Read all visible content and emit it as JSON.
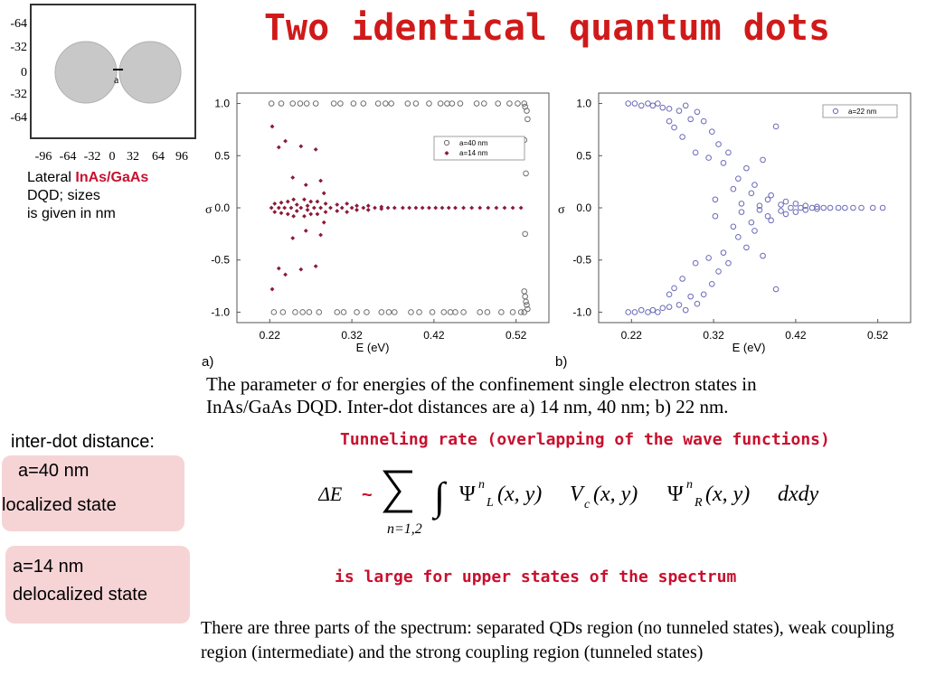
{
  "title": "Two identical quantum dots",
  "inset": {
    "y_ticks": [
      "-64",
      "-32",
      "0",
      "-32",
      "-64"
    ],
    "x_ticks": [
      "-96",
      "-64",
      "-32",
      "0",
      "32",
      "64",
      "96"
    ],
    "gap_label": "a",
    "caption_prefix": "Lateral ",
    "caption_highlight": "InAs/GaAs",
    "caption_line2": "DQD; sizes",
    "caption_line3": "is given in nm"
  },
  "chart_data": [
    {
      "type": "scatter",
      "panel_label": "a)",
      "xlabel": "E (eV)",
      "ylabel": "σ",
      "xlim": [
        0.18,
        0.56
      ],
      "ylim": [
        -1.1,
        1.1
      ],
      "x_ticks": [
        "0.22",
        "0.32",
        "0.42",
        "0.52"
      ],
      "y_ticks": [
        "1.0",
        "0.5",
        "0.0",
        "-0.5",
        "-1.0"
      ],
      "legend_position": "top-right",
      "grid": false,
      "series": [
        {
          "name": "a=40 nm",
          "marker": "open-circle",
          "color": "#6e6e6e",
          "points": [
            [
              0.222,
              1.0
            ],
            [
              0.225,
              -1.0
            ],
            [
              0.234,
              1.0
            ],
            [
              0.236,
              -1.0
            ],
            [
              0.248,
              1.0
            ],
            [
              0.251,
              -1.0
            ],
            [
              0.257,
              1.0
            ],
            [
              0.26,
              -1.0
            ],
            [
              0.265,
              1.0
            ],
            [
              0.268,
              -1.0
            ],
            [
              0.276,
              1.0
            ],
            [
              0.28,
              -1.0
            ],
            [
              0.298,
              1.0
            ],
            [
              0.302,
              -1.0
            ],
            [
              0.306,
              1.0
            ],
            [
              0.31,
              -1.0
            ],
            [
              0.322,
              1.0
            ],
            [
              0.326,
              -1.0
            ],
            [
              0.334,
              1.0
            ],
            [
              0.338,
              -1.0
            ],
            [
              0.352,
              1.0
            ],
            [
              0.356,
              -1.0
            ],
            [
              0.361,
              1.0
            ],
            [
              0.365,
              -1.0
            ],
            [
              0.368,
              1.0
            ],
            [
              0.372,
              -1.0
            ],
            [
              0.388,
              1.0
            ],
            [
              0.392,
              -1.0
            ],
            [
              0.398,
              1.0
            ],
            [
              0.402,
              -1.0
            ],
            [
              0.414,
              1.0
            ],
            [
              0.418,
              -1.0
            ],
            [
              0.428,
              1.0
            ],
            [
              0.432,
              -1.0
            ],
            [
              0.436,
              1.0
            ],
            [
              0.44,
              -1.0
            ],
            [
              0.442,
              1.0
            ],
            [
              0.446,
              -1.0
            ],
            [
              0.452,
              1.0
            ],
            [
              0.456,
              -1.0
            ],
            [
              0.472,
              1.0
            ],
            [
              0.476,
              -1.0
            ],
            [
              0.481,
              1.0
            ],
            [
              0.485,
              -1.0
            ],
            [
              0.498,
              1.0
            ],
            [
              0.502,
              -1.0
            ],
            [
              0.512,
              1.0
            ],
            [
              0.516,
              -1.0
            ],
            [
              0.522,
              1.0
            ],
            [
              0.526,
              -1.0
            ],
            [
              0.53,
              1.0
            ],
            [
              0.531,
              0.97
            ],
            [
              0.533,
              0.93
            ],
            [
              0.534,
              0.85
            ],
            [
              0.53,
              0.65
            ],
            [
              0.532,
              0.33
            ],
            [
              0.531,
              -0.25
            ],
            [
              0.53,
              -0.8
            ],
            [
              0.531,
              -0.85
            ],
            [
              0.532,
              -0.9
            ],
            [
              0.533,
              -0.93
            ],
            [
              0.534,
              -0.97
            ],
            [
              0.53,
              -1.0
            ]
          ]
        },
        {
          "name": "a=14 nm",
          "marker": "filled-diamond",
          "color": "#8b1a3a",
          "points": [
            [
              0.223,
              0.78
            ],
            [
              0.223,
              -0.78
            ],
            [
              0.231,
              0.58
            ],
            [
              0.231,
              -0.58
            ],
            [
              0.239,
              0.64
            ],
            [
              0.239,
              -0.64
            ],
            [
              0.248,
              0.29
            ],
            [
              0.248,
              -0.29
            ],
            [
              0.258,
              0.59
            ],
            [
              0.258,
              -0.59
            ],
            [
              0.264,
              0.22
            ],
            [
              0.264,
              -0.22
            ],
            [
              0.276,
              0.56
            ],
            [
              0.276,
              -0.56
            ],
            [
              0.282,
              0.26
            ],
            [
              0.282,
              -0.26
            ],
            [
              0.286,
              0.14
            ],
            [
              0.286,
              -0.14
            ],
            [
              0.222,
              0.0
            ],
            [
              0.226,
              0.04
            ],
            [
              0.226,
              -0.04
            ],
            [
              0.231,
              0.0
            ],
            [
              0.234,
              0.05
            ],
            [
              0.234,
              -0.05
            ],
            [
              0.238,
              0.0
            ],
            [
              0.242,
              0.06
            ],
            [
              0.242,
              -0.06
            ],
            [
              0.246,
              0.0
            ],
            [
              0.249,
              0.08
            ],
            [
              0.249,
              -0.08
            ],
            [
              0.253,
              0.03
            ],
            [
              0.253,
              -0.03
            ],
            [
              0.258,
              0.0
            ],
            [
              0.262,
              0.08
            ],
            [
              0.262,
              -0.08
            ],
            [
              0.266,
              0.02
            ],
            [
              0.266,
              -0.02
            ],
            [
              0.27,
              0.06
            ],
            [
              0.27,
              -0.06
            ],
            [
              0.274,
              0.0
            ],
            [
              0.278,
              0.06
            ],
            [
              0.278,
              -0.06
            ],
            [
              0.282,
              0.0
            ],
            [
              0.288,
              0.04
            ],
            [
              0.288,
              -0.04
            ],
            [
              0.294,
              0.0
            ],
            [
              0.302,
              0.03
            ],
            [
              0.302,
              -0.03
            ],
            [
              0.308,
              0.0
            ],
            [
              0.314,
              0.04
            ],
            [
              0.314,
              -0.04
            ],
            [
              0.32,
              0.0
            ],
            [
              0.326,
              0.02
            ],
            [
              0.326,
              -0.02
            ],
            [
              0.334,
              0.0
            ],
            [
              0.34,
              0.02
            ],
            [
              0.34,
              -0.02
            ],
            [
              0.348,
              0.0
            ],
            [
              0.356,
              0.01
            ],
            [
              0.356,
              -0.01
            ],
            [
              0.364,
              0.0
            ],
            [
              0.372,
              0.0
            ],
            [
              0.382,
              0.0
            ],
            [
              0.39,
              0.0
            ],
            [
              0.398,
              0.0
            ],
            [
              0.406,
              0.0
            ],
            [
              0.414,
              0.0
            ],
            [
              0.422,
              0.0
            ],
            [
              0.43,
              0.0
            ],
            [
              0.438,
              0.0
            ],
            [
              0.446,
              0.0
            ],
            [
              0.456,
              0.0
            ],
            [
              0.466,
              0.0
            ],
            [
              0.476,
              0.0
            ],
            [
              0.486,
              0.0
            ],
            [
              0.496,
              0.0
            ],
            [
              0.506,
              0.0
            ],
            [
              0.516,
              0.0
            ],
            [
              0.526,
              0.0
            ]
          ]
        }
      ]
    },
    {
      "type": "scatter",
      "panel_label": "b)",
      "xlabel": "E (eV)",
      "ylabel": "σ",
      "xlim": [
        0.18,
        0.56
      ],
      "ylim": [
        -1.1,
        1.1
      ],
      "x_ticks": [
        "0.22",
        "0.32",
        "0.42",
        "0.52"
      ],
      "y_ticks": [
        "1.0",
        "0.5",
        "0.0",
        "-0.5",
        "-1.0"
      ],
      "legend_position": "top-right",
      "grid": false,
      "series": [
        {
          "name": "a=22 nm",
          "marker": "open-circle",
          "color": "#6a6ab8",
          "points": [
            [
              0.216,
              1.0
            ],
            [
              0.216,
              -1.0
            ],
            [
              0.224,
              1.0
            ],
            [
              0.224,
              -1.0
            ],
            [
              0.232,
              0.98
            ],
            [
              0.232,
              -0.98
            ],
            [
              0.24,
              1.0
            ],
            [
              0.24,
              -1.0
            ],
            [
              0.246,
              0.98
            ],
            [
              0.246,
              -0.98
            ],
            [
              0.252,
              1.0
            ],
            [
              0.252,
              -1.0
            ],
            [
              0.258,
              0.96
            ],
            [
              0.258,
              -0.96
            ],
            [
              0.266,
              0.95
            ],
            [
              0.266,
              -0.95
            ],
            [
              0.266,
              0.83
            ],
            [
              0.266,
              -0.83
            ],
            [
              0.272,
              0.77
            ],
            [
              0.272,
              -0.77
            ],
            [
              0.278,
              0.93
            ],
            [
              0.278,
              -0.93
            ],
            [
              0.282,
              0.68
            ],
            [
              0.282,
              -0.68
            ],
            [
              0.286,
              0.98
            ],
            [
              0.286,
              -0.98
            ],
            [
              0.292,
              0.85
            ],
            [
              0.292,
              -0.85
            ],
            [
              0.298,
              0.53
            ],
            [
              0.298,
              -0.53
            ],
            [
              0.3,
              0.92
            ],
            [
              0.3,
              -0.92
            ],
            [
              0.308,
              0.83
            ],
            [
              0.308,
              -0.83
            ],
            [
              0.314,
              0.48
            ],
            [
              0.314,
              -0.48
            ],
            [
              0.318,
              0.73
            ],
            [
              0.318,
              -0.73
            ],
            [
              0.322,
              0.08
            ],
            [
              0.322,
              -0.08
            ],
            [
              0.326,
              0.61
            ],
            [
              0.326,
              -0.61
            ],
            [
              0.332,
              0.43
            ],
            [
              0.332,
              -0.43
            ],
            [
              0.338,
              0.53
            ],
            [
              0.338,
              -0.53
            ],
            [
              0.344,
              0.18
            ],
            [
              0.344,
              -0.18
            ],
            [
              0.35,
              0.28
            ],
            [
              0.35,
              -0.28
            ],
            [
              0.354,
              0.04
            ],
            [
              0.354,
              -0.04
            ],
            [
              0.36,
              0.38
            ],
            [
              0.36,
              -0.38
            ],
            [
              0.366,
              0.14
            ],
            [
              0.366,
              -0.14
            ],
            [
              0.37,
              0.22
            ],
            [
              0.37,
              -0.22
            ],
            [
              0.376,
              0.02
            ],
            [
              0.376,
              -0.02
            ],
            [
              0.38,
              0.46
            ],
            [
              0.38,
              -0.46
            ],
            [
              0.386,
              0.08
            ],
            [
              0.386,
              -0.08
            ],
            [
              0.39,
              0.12
            ],
            [
              0.39,
              -0.12
            ],
            [
              0.396,
              0.78
            ],
            [
              0.396,
              -0.78
            ],
            [
              0.402,
              0.03
            ],
            [
              0.402,
              -0.03
            ],
            [
              0.408,
              0.06
            ],
            [
              0.408,
              -0.06
            ],
            [
              0.414,
              0.0
            ],
            [
              0.42,
              0.04
            ],
            [
              0.42,
              -0.04
            ],
            [
              0.426,
              0.0
            ],
            [
              0.432,
              0.02
            ],
            [
              0.432,
              -0.02
            ],
            [
              0.44,
              0.0
            ],
            [
              0.446,
              0.01
            ],
            [
              0.446,
              -0.01
            ],
            [
              0.454,
              0.0
            ],
            [
              0.462,
              0.0
            ],
            [
              0.472,
              0.0
            ],
            [
              0.48,
              0.0
            ],
            [
              0.49,
              0.0
            ],
            [
              0.5,
              0.0
            ],
            [
              0.514,
              0.0
            ],
            [
              0.526,
              0.0
            ]
          ]
        }
      ]
    }
  ],
  "figure_caption_line1": "The parameter σ for energies of the confinement single electron states in",
  "figure_caption_line2": "InAs/GaAs  DQD. Inter-dot distances are a) 14 nm, 40 nm; b) 22 nm.",
  "inter_dot_label": "inter-dot distance:",
  "box1": {
    "line1": "a=40 nm",
    "line2": "localized state"
  },
  "box2": {
    "line1": "a=14 nm",
    "line2": "delocalized state"
  },
  "tunneling_heading": "Tunneling rate (overlapping of the wave functions)",
  "formula": {
    "lhs": "ΔE",
    "approx": "~",
    "sum_limits": "n=1,2",
    "integral": "∫",
    "psi_left": "Ψ",
    "sup_n": "n",
    "sub_L": "L",
    "args": "(x, y)",
    "V": "V",
    "sub_c": "c",
    "sub_R": "R",
    "tail": "dxdy"
  },
  "large_text": "is large for upper states of the spectrum",
  "bottom_text": "There are three parts of the spectrum: separated QDs region (no tunneled states), weak coupling region (intermediate) and the strong coupling region (tunneled states)",
  "colors": {
    "title_red": "#d01a1a",
    "highlight_red": "#c8102e",
    "box_pink": "#f6d4d6",
    "dot_gray": "#c8c8c8",
    "series_a40": "#6e6e6e",
    "series_a14": "#8b1a3a",
    "series_a22": "#6a6ab8"
  }
}
